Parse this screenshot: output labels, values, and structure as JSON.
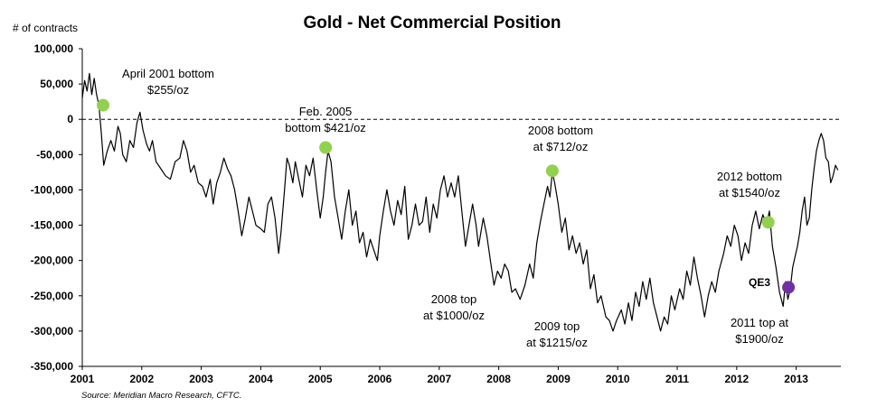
{
  "chart_data": {
    "type": "line",
    "title": "Gold - Net Commercial Position",
    "ylabel": "# of contracts",
    "xlabel": "",
    "source": "Source: Meridian Macro Research, CFTC.",
    "ylim": [
      -350000,
      100000
    ],
    "xlim": [
      2001.0,
      2013.75
    ],
    "yticks": [
      100000,
      50000,
      0,
      -50000,
      -100000,
      -150000,
      -200000,
      -250000,
      -300000,
      -350000
    ],
    "ytick_labels": [
      "100,000",
      "50,000",
      "0",
      "-50,000",
      "-100,000",
      "-150,000",
      "-200,000",
      "-250,000",
      "-300,000",
      "-350,000"
    ],
    "xtick_labels": [
      "2001",
      "2002",
      "2003",
      "2004",
      "2005",
      "2006",
      "2007",
      "2008",
      "2009",
      "2010",
      "2011",
      "2012",
      "2013"
    ],
    "reference_line": {
      "y": 0,
      "style": "dashed"
    },
    "grid": false,
    "series": [
      {
        "color": "#000000",
        "points": [
          [
            2001.0,
            30000
          ],
          [
            2001.04,
            55000
          ],
          [
            2001.08,
            40000
          ],
          [
            2001.12,
            65000
          ],
          [
            2001.16,
            35000
          ],
          [
            2001.2,
            58000
          ],
          [
            2001.24,
            35000
          ],
          [
            2001.28,
            20000
          ],
          [
            2001.32,
            -20000
          ],
          [
            2001.36,
            -65000
          ],
          [
            2001.42,
            -45000
          ],
          [
            2001.48,
            -30000
          ],
          [
            2001.54,
            -45000
          ],
          [
            2001.6,
            -10000
          ],
          [
            2001.64,
            -20000
          ],
          [
            2001.68,
            -50000
          ],
          [
            2001.74,
            -60000
          ],
          [
            2001.8,
            -30000
          ],
          [
            2001.86,
            -40000
          ],
          [
            2001.92,
            -5000
          ],
          [
            2001.97,
            10000
          ],
          [
            2002.02,
            -15000
          ],
          [
            2002.08,
            -35000
          ],
          [
            2002.13,
            -45000
          ],
          [
            2002.18,
            -30000
          ],
          [
            2002.24,
            -60000
          ],
          [
            2002.32,
            -70000
          ],
          [
            2002.4,
            -80000
          ],
          [
            2002.48,
            -85000
          ],
          [
            2002.56,
            -60000
          ],
          [
            2002.64,
            -55000
          ],
          [
            2002.7,
            -30000
          ],
          [
            2002.76,
            -45000
          ],
          [
            2002.82,
            -75000
          ],
          [
            2002.88,
            -65000
          ],
          [
            2002.95,
            -90000
          ],
          [
            2003.02,
            -95000
          ],
          [
            2003.08,
            -110000
          ],
          [
            2003.15,
            -85000
          ],
          [
            2003.2,
            -120000
          ],
          [
            2003.26,
            -90000
          ],
          [
            2003.32,
            -75000
          ],
          [
            2003.38,
            -55000
          ],
          [
            2003.44,
            -70000
          ],
          [
            2003.5,
            -80000
          ],
          [
            2003.56,
            -100000
          ],
          [
            2003.62,
            -130000
          ],
          [
            2003.68,
            -165000
          ],
          [
            2003.74,
            -140000
          ],
          [
            2003.8,
            -110000
          ],
          [
            2003.86,
            -130000
          ],
          [
            2003.92,
            -150000
          ],
          [
            2004.0,
            -155000
          ],
          [
            2004.06,
            -160000
          ],
          [
            2004.12,
            -120000
          ],
          [
            2004.18,
            -110000
          ],
          [
            2004.24,
            -140000
          ],
          [
            2004.3,
            -190000
          ],
          [
            2004.34,
            -160000
          ],
          [
            2004.4,
            -100000
          ],
          [
            2004.44,
            -55000
          ],
          [
            2004.48,
            -65000
          ],
          [
            2004.54,
            -90000
          ],
          [
            2004.58,
            -60000
          ],
          [
            2004.64,
            -85000
          ],
          [
            2004.7,
            -110000
          ],
          [
            2004.76,
            -65000
          ],
          [
            2004.82,
            -80000
          ],
          [
            2004.88,
            -55000
          ],
          [
            2004.94,
            -100000
          ],
          [
            2005.0,
            -140000
          ],
          [
            2005.05,
            -110000
          ],
          [
            2005.09,
            -75000
          ],
          [
            2005.13,
            -45000
          ],
          [
            2005.18,
            -60000
          ],
          [
            2005.24,
            -110000
          ],
          [
            2005.3,
            -140000
          ],
          [
            2005.36,
            -170000
          ],
          [
            2005.42,
            -130000
          ],
          [
            2005.48,
            -100000
          ],
          [
            2005.54,
            -150000
          ],
          [
            2005.6,
            -130000
          ],
          [
            2005.66,
            -175000
          ],
          [
            2005.72,
            -160000
          ],
          [
            2005.78,
            -195000
          ],
          [
            2005.84,
            -170000
          ],
          [
            2005.9,
            -185000
          ],
          [
            2005.96,
            -200000
          ],
          [
            2006.0,
            -165000
          ],
          [
            2006.06,
            -130000
          ],
          [
            2006.12,
            -100000
          ],
          [
            2006.18,
            -130000
          ],
          [
            2006.24,
            -150000
          ],
          [
            2006.3,
            -115000
          ],
          [
            2006.36,
            -135000
          ],
          [
            2006.42,
            -95000
          ],
          [
            2006.48,
            -170000
          ],
          [
            2006.54,
            -150000
          ],
          [
            2006.6,
            -120000
          ],
          [
            2006.66,
            -150000
          ],
          [
            2006.72,
            -145000
          ],
          [
            2006.78,
            -110000
          ],
          [
            2006.84,
            -160000
          ],
          [
            2006.9,
            -120000
          ],
          [
            2006.96,
            -140000
          ],
          [
            2007.02,
            -100000
          ],
          [
            2007.08,
            -80000
          ],
          [
            2007.14,
            -110000
          ],
          [
            2007.2,
            -90000
          ],
          [
            2007.26,
            -110000
          ],
          [
            2007.32,
            -80000
          ],
          [
            2007.38,
            -130000
          ],
          [
            2007.44,
            -180000
          ],
          [
            2007.5,
            -150000
          ],
          [
            2007.56,
            -120000
          ],
          [
            2007.62,
            -150000
          ],
          [
            2007.66,
            -180000
          ],
          [
            2007.7,
            -160000
          ],
          [
            2007.74,
            -140000
          ],
          [
            2007.8,
            -165000
          ],
          [
            2007.86,
            -200000
          ],
          [
            2007.92,
            -235000
          ],
          [
            2007.98,
            -215000
          ],
          [
            2008.04,
            -225000
          ],
          [
            2008.1,
            -205000
          ],
          [
            2008.16,
            -215000
          ],
          [
            2008.22,
            -245000
          ],
          [
            2008.28,
            -240000
          ],
          [
            2008.36,
            -255000
          ],
          [
            2008.44,
            -235000
          ],
          [
            2008.52,
            -205000
          ],
          [
            2008.58,
            -225000
          ],
          [
            2008.64,
            -175000
          ],
          [
            2008.7,
            -145000
          ],
          [
            2008.76,
            -120000
          ],
          [
            2008.82,
            -95000
          ],
          [
            2008.86,
            -110000
          ],
          [
            2008.9,
            -75000
          ],
          [
            2008.94,
            -90000
          ],
          [
            2009.0,
            -120000
          ],
          [
            2009.06,
            -160000
          ],
          [
            2009.12,
            -140000
          ],
          [
            2009.18,
            -185000
          ],
          [
            2009.24,
            -165000
          ],
          [
            2009.3,
            -190000
          ],
          [
            2009.36,
            -175000
          ],
          [
            2009.42,
            -205000
          ],
          [
            2009.48,
            -185000
          ],
          [
            2009.54,
            -240000
          ],
          [
            2009.6,
            -220000
          ],
          [
            2009.66,
            -260000
          ],
          [
            2009.72,
            -250000
          ],
          [
            2009.8,
            -280000
          ],
          [
            2009.86,
            -285000
          ],
          [
            2009.92,
            -300000
          ],
          [
            2009.98,
            -285000
          ],
          [
            2010.06,
            -270000
          ],
          [
            2010.12,
            -290000
          ],
          [
            2010.18,
            -260000
          ],
          [
            2010.24,
            -285000
          ],
          [
            2010.3,
            -245000
          ],
          [
            2010.36,
            -265000
          ],
          [
            2010.42,
            -230000
          ],
          [
            2010.48,
            -255000
          ],
          [
            2010.54,
            -225000
          ],
          [
            2010.6,
            -260000
          ],
          [
            2010.66,
            -280000
          ],
          [
            2010.72,
            -300000
          ],
          [
            2010.78,
            -280000
          ],
          [
            2010.84,
            -290000
          ],
          [
            2010.9,
            -250000
          ],
          [
            2010.96,
            -270000
          ],
          [
            2011.04,
            -240000
          ],
          [
            2011.1,
            -255000
          ],
          [
            2011.16,
            -215000
          ],
          [
            2011.22,
            -235000
          ],
          [
            2011.28,
            -195000
          ],
          [
            2011.34,
            -225000
          ],
          [
            2011.4,
            -250000
          ],
          [
            2011.46,
            -280000
          ],
          [
            2011.52,
            -250000
          ],
          [
            2011.58,
            -230000
          ],
          [
            2011.64,
            -245000
          ],
          [
            2011.7,
            -215000
          ],
          [
            2011.78,
            -190000
          ],
          [
            2011.84,
            -165000
          ],
          [
            2011.9,
            -180000
          ],
          [
            2011.96,
            -150000
          ],
          [
            2012.02,
            -165000
          ],
          [
            2012.08,
            -200000
          ],
          [
            2012.14,
            -175000
          ],
          [
            2012.2,
            -190000
          ],
          [
            2012.26,
            -150000
          ],
          [
            2012.32,
            -130000
          ],
          [
            2012.38,
            -155000
          ],
          [
            2012.44,
            -135000
          ],
          [
            2012.5,
            -150000
          ],
          [
            2012.55,
            -130000
          ],
          [
            2012.6,
            -180000
          ],
          [
            2012.66,
            -210000
          ],
          [
            2012.72,
            -245000
          ],
          [
            2012.78,
            -265000
          ],
          [
            2012.82,
            -230000
          ],
          [
            2012.86,
            -255000
          ],
          [
            2012.9,
            -240000
          ],
          [
            2012.94,
            -210000
          ],
          [
            2012.98,
            -195000
          ],
          [
            2013.02,
            -180000
          ],
          [
            2013.06,
            -160000
          ],
          [
            2013.1,
            -130000
          ],
          [
            2013.14,
            -110000
          ],
          [
            2013.18,
            -150000
          ],
          [
            2013.22,
            -140000
          ],
          [
            2013.26,
            -100000
          ],
          [
            2013.3,
            -70000
          ],
          [
            2013.34,
            -45000
          ],
          [
            2013.38,
            -30000
          ],
          [
            2013.42,
            -20000
          ],
          [
            2013.46,
            -30000
          ],
          [
            2013.5,
            -55000
          ],
          [
            2013.54,
            -60000
          ],
          [
            2013.58,
            -90000
          ],
          [
            2013.62,
            -80000
          ],
          [
            2013.66,
            -65000
          ],
          [
            2013.7,
            -72000
          ]
        ]
      }
    ],
    "markers": [
      {
        "x": 2001.35,
        "y": 20000,
        "color": "#92d050"
      },
      {
        "x": 2005.09,
        "y": -40000,
        "color": "#92d050"
      },
      {
        "x": 2008.9,
        "y": -73000,
        "color": "#92d050"
      },
      {
        "x": 2012.53,
        "y": -146000,
        "color": "#92d050"
      },
      {
        "x": 2012.87,
        "y": -238000,
        "color": "#7030a0"
      }
    ],
    "annotations": [
      {
        "lines": [
          "April 2001 bottom",
          "$255/oz"
        ]
      },
      {
        "lines": [
          "Feb. 2005",
          "bottom $421/oz"
        ]
      },
      {
        "lines": [
          "2008 bottom",
          "at $712/oz"
        ]
      },
      {
        "lines": [
          "2012 bottom",
          "at $1540/oz"
        ]
      },
      {
        "lines": [
          "2008 top",
          "at $1000/oz"
        ]
      },
      {
        "lines": [
          "2009 top",
          "at $1215/oz"
        ]
      },
      {
        "lines": [
          "2011 top at",
          "$1900/oz"
        ]
      },
      {
        "lines": [
          "QE3"
        ]
      }
    ]
  }
}
